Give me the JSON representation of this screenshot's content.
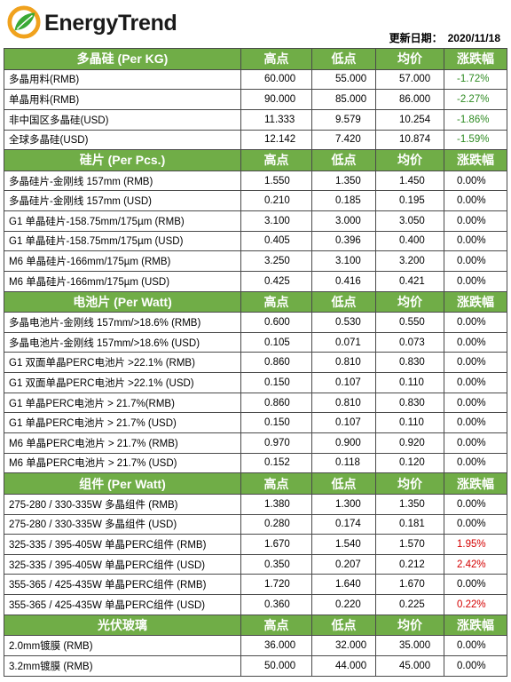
{
  "brand": {
    "name": "EnergyTrend"
  },
  "update": {
    "label": "更新日期：",
    "date": "2020/11/18"
  },
  "columns": {
    "high": "高点",
    "low": "低点",
    "avg": "均价",
    "change": "涨跌幅"
  },
  "sections": [
    {
      "title": "多晶硅 (Per KG)",
      "rows": [
        {
          "name": "多晶用料(RMB)",
          "high": "60.000",
          "low": "55.000",
          "avg": "57.000",
          "change": "-1.72%",
          "dir": "neg"
        },
        {
          "name": "单晶用料(RMB)",
          "high": "90.000",
          "low": "85.000",
          "avg": "86.000",
          "change": "-2.27%",
          "dir": "neg"
        },
        {
          "name": "非中国区多晶硅(USD)",
          "high": "11.333",
          "low": "9.579",
          "avg": "10.254",
          "change": "-1.86%",
          "dir": "neg"
        },
        {
          "name": "全球多晶硅(USD)",
          "high": "12.142",
          "low": "7.420",
          "avg": "10.874",
          "change": "-1.59%",
          "dir": "neg"
        }
      ]
    },
    {
      "title": "硅片 (Per Pcs.)",
      "rows": [
        {
          "name": "多晶硅片-金刚线 157mm (RMB)",
          "high": "1.550",
          "low": "1.350",
          "avg": "1.450",
          "change": "0.00%",
          "dir": "flat"
        },
        {
          "name": "多晶硅片-金刚线 157mm (USD)",
          "high": "0.210",
          "low": "0.185",
          "avg": "0.195",
          "change": "0.00%",
          "dir": "flat"
        },
        {
          "name": "G1 单晶硅片-158.75mm/175µm (RMB)",
          "high": "3.100",
          "low": "3.000",
          "avg": "3.050",
          "change": "0.00%",
          "dir": "flat"
        },
        {
          "name": "G1 单晶硅片-158.75mm/175µm (USD)",
          "high": "0.405",
          "low": "0.396",
          "avg": "0.400",
          "change": "0.00%",
          "dir": "flat"
        },
        {
          "name": "M6 单晶硅片-166mm/175µm (RMB)",
          "high": "3.250",
          "low": "3.100",
          "avg": "3.200",
          "change": "0.00%",
          "dir": "flat"
        },
        {
          "name": "M6 单晶硅片-166mm/175µm (USD)",
          "high": "0.425",
          "low": "0.416",
          "avg": "0.421",
          "change": "0.00%",
          "dir": "flat"
        }
      ]
    },
    {
      "title": "电池片 (Per Watt)",
      "rows": [
        {
          "name": "多晶电池片-金刚线 157mm/>18.6% (RMB)",
          "high": "0.600",
          "low": "0.530",
          "avg": "0.550",
          "change": "0.00%",
          "dir": "flat"
        },
        {
          "name": "多晶电池片-金刚线 157mm/>18.6% (USD)",
          "high": "0.105",
          "low": "0.071",
          "avg": "0.073",
          "change": "0.00%",
          "dir": "flat"
        },
        {
          "name": "G1 双面单晶PERC电池片 >22.1% (RMB)",
          "high": "0.860",
          "low": "0.810",
          "avg": "0.830",
          "change": "0.00%",
          "dir": "flat"
        },
        {
          "name": "G1 双面单晶PERC电池片 >22.1% (USD)",
          "high": "0.150",
          "low": "0.107",
          "avg": "0.110",
          "change": "0.00%",
          "dir": "flat"
        },
        {
          "name": "G1 单晶PERC电池片 > 21.7%(RMB)",
          "high": "0.860",
          "low": "0.810",
          "avg": "0.830",
          "change": "0.00%",
          "dir": "flat"
        },
        {
          "name": "G1 单晶PERC电池片 > 21.7% (USD)",
          "high": "0.150",
          "low": "0.107",
          "avg": "0.110",
          "change": "0.00%",
          "dir": "flat"
        },
        {
          "name": "M6 单晶PERC电池片 > 21.7% (RMB)",
          "high": "0.970",
          "low": "0.900",
          "avg": "0.920",
          "change": "0.00%",
          "dir": "flat"
        },
        {
          "name": "M6 单晶PERC电池片 > 21.7% (USD)",
          "high": "0.152",
          "low": "0.118",
          "avg": "0.120",
          "change": "0.00%",
          "dir": "flat"
        }
      ]
    },
    {
      "title": "组件 (Per Watt)",
      "rows": [
        {
          "name": "275-280 / 330-335W 多晶组件 (RMB)",
          "high": "1.380",
          "low": "1.300",
          "avg": "1.350",
          "change": "0.00%",
          "dir": "flat"
        },
        {
          "name": "275-280 / 330-335W 多晶组件 (USD)",
          "high": "0.280",
          "low": "0.174",
          "avg": "0.181",
          "change": "0.00%",
          "dir": "flat"
        },
        {
          "name": "325-335 / 395-405W 单晶PERC组件 (RMB)",
          "high": "1.670",
          "low": "1.540",
          "avg": "1.570",
          "change": "1.95%",
          "dir": "pos"
        },
        {
          "name": "325-335 / 395-405W 单晶PERC组件 (USD)",
          "high": "0.350",
          "low": "0.207",
          "avg": "0.212",
          "change": "2.42%",
          "dir": "pos"
        },
        {
          "name": "355-365 / 425-435W 单晶PERC组件 (RMB)",
          "high": "1.720",
          "low": "1.640",
          "avg": "1.670",
          "change": "0.00%",
          "dir": "flat"
        },
        {
          "name": "355-365 / 425-435W 单晶PERC组件 (USD)",
          "high": "0.360",
          "low": "0.220",
          "avg": "0.225",
          "change": "0.22%",
          "dir": "pos"
        }
      ]
    },
    {
      "title": "光伏玻璃",
      "rows": [
        {
          "name": "2.0mm镀膜 (RMB)",
          "high": "36.000",
          "low": "32.000",
          "avg": "35.000",
          "change": "0.00%",
          "dir": "flat"
        },
        {
          "name": "3.2mm镀膜 (RMB)",
          "high": "50.000",
          "low": "44.000",
          "avg": "45.000",
          "change": "0.00%",
          "dir": "flat"
        }
      ]
    }
  ],
  "colors": {
    "header_green": "#70ad47",
    "negative": "#2e8b22",
    "positive": "#d40000",
    "logo_orange": "#f0a21e",
    "logo_green": "#3aa935"
  }
}
